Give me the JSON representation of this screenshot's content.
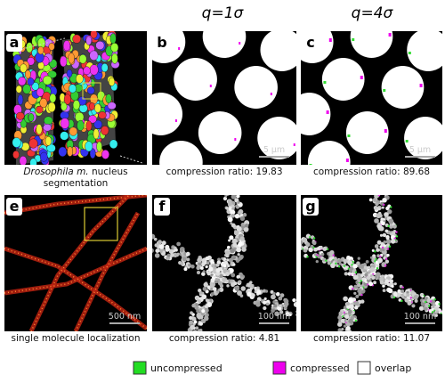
{
  "column_headers": [
    "q=1σ",
    "q=4σ"
  ],
  "panels": [
    {
      "label": "a",
      "caption_italic": "Drosophila m.",
      "caption": "nucleus segmentation"
    },
    {
      "label": "b",
      "scale_bar": "5 μm",
      "caption": "compression ratio: 19.83"
    },
    {
      "label": "c",
      "scale_bar": "5 μm",
      "caption": "compression ratio: 89.68"
    },
    {
      "label": "e",
      "scale_bar": "500 nm",
      "caption": "single molecule localization"
    },
    {
      "label": "f",
      "scale_bar": "100 nm",
      "caption": "compression ratio: 4.81"
    },
    {
      "label": "g",
      "scale_bar": "100 nm",
      "caption": "compression ratio: 11.07"
    }
  ],
  "legend": [
    "uncompressed",
    "compressed",
    "overlap"
  ]
}
